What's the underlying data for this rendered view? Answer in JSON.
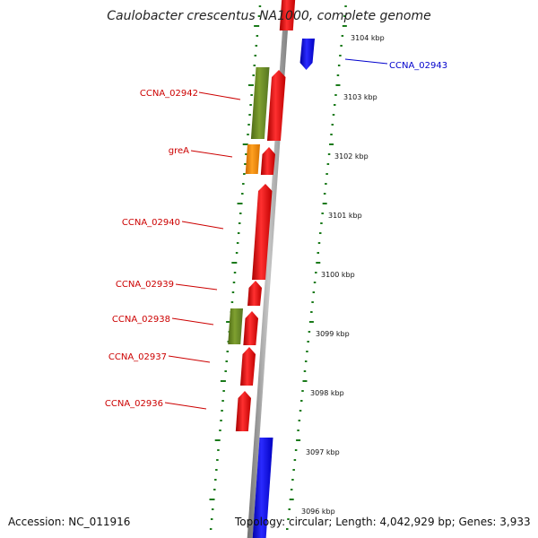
{
  "title": "Caulobacter crescentus NA1000, complete genome",
  "footer": {
    "accession": "Accession: NC_011916",
    "stats": "Topology: circular; Length: 4,042,929 bp; Genes: 3,933"
  },
  "colors": {
    "backbone": "#888888",
    "tick": "#1a7a1a",
    "forward_gene": "#ff0000",
    "reverse_gene_blue": "#0000ff",
    "olive_gene": "#6b8e23",
    "orange_gene": "#ff8c00",
    "label_red": "#cc0000",
    "label_blue": "#0000cc"
  },
  "scale_labels": [
    "3104 kbp",
    "3103 kbp",
    "3102 kbp",
    "3101 kbp",
    "3100 kbp",
    "3099 kbp",
    "3098 kbp",
    "3097 kbp",
    "3096 kbp"
  ],
  "gene_labels": [
    {
      "name": "CCNA_02943",
      "color": "#0000cc"
    },
    {
      "name": "CCNA_02942",
      "color": "#cc0000"
    },
    {
      "name": "greA",
      "color": "#cc0000"
    },
    {
      "name": "CCNA_02940",
      "color": "#cc0000"
    },
    {
      "name": "CCNA_02939",
      "color": "#cc0000"
    },
    {
      "name": "CCNA_02938",
      "color": "#cc0000"
    },
    {
      "name": "CCNA_02937",
      "color": "#cc0000"
    },
    {
      "name": "CCNA_02936",
      "color": "#cc0000"
    }
  ]
}
